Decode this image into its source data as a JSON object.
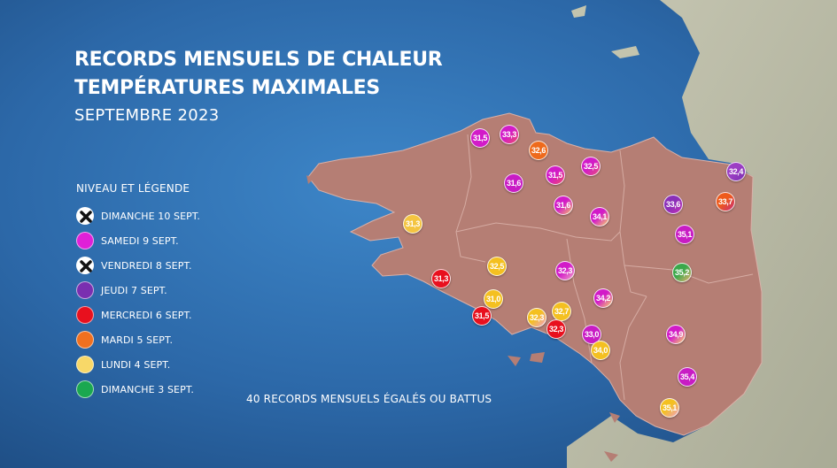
{
  "title": {
    "line1": "RECORDS MENSUELS DE CHALEUR",
    "line2": "TEMPÉRATURES MAXIMALES",
    "line3": "SEPTEMBRE 2023"
  },
  "legend": {
    "title": "NIVEAU ET LÉGENDE",
    "items": [
      {
        "label": "DIMANCHE 10 SEPT.",
        "color": "#ffffff",
        "icon": "cross-icon"
      },
      {
        "label": "SAMEDI 9 SEPT.",
        "color": "#e020d8",
        "icon": "dot-icon"
      },
      {
        "label": "VENDREDI 8 SEPT.",
        "color": "#ffffff",
        "icon": "cross-icon"
      },
      {
        "label": "JEUDI 7 SEPT.",
        "color": "#7a2fb0",
        "icon": "dot-icon"
      },
      {
        "label": "MERCREDI  6 SEPT.",
        "color": "#e8101e",
        "icon": "dot-icon"
      },
      {
        "label": "MARDI 5 SEPT.",
        "color": "#f07020",
        "icon": "dot-icon"
      },
      {
        "label": "LUNDI 4 SEPT.",
        "color": "#f8d868",
        "icon": "dot-icon"
      },
      {
        "label": "DIMANCHE 3 SEPT.",
        "color": "#1aa850",
        "icon": "dot-icon"
      }
    ]
  },
  "footnote": "40 RECORDS MENSUELS ÉGALÉS OU BATTUS",
  "stations": [
    {
      "value": "31,5",
      "colors": [
        "#d21bc8"
      ]
    },
    {
      "value": "33,3",
      "colors": [
        "#d21bc8",
        "#ee4a6a"
      ]
    },
    {
      "value": "32,6",
      "colors": [
        "#ee6a1c"
      ]
    },
    {
      "value": "31,5",
      "colors": [
        "#d21bc8",
        "#ee4a6a"
      ]
    },
    {
      "value": "32,5",
      "colors": [
        "#d21bc8",
        "#e6507a"
      ]
    },
    {
      "value": "31,6",
      "colors": [
        "#c81cc4"
      ]
    },
    {
      "value": "32,4",
      "colors": [
        "#9c3fc4",
        "#7a2fb0"
      ]
    },
    {
      "value": "33,6",
      "colors": [
        "#8a2fb8",
        "#c030b8"
      ]
    },
    {
      "value": "33,7",
      "colors": [
        "#ee5a1c",
        "#c82a78"
      ]
    },
    {
      "value": "31,6",
      "colors": [
        "#d21bc8",
        "#f4c06a"
      ]
    },
    {
      "value": "34,1",
      "colors": [
        "#d21bc8",
        "#f8d868"
      ]
    },
    {
      "value": "31,3",
      "colors": [
        "#f4c440"
      ]
    },
    {
      "value": "35,1",
      "colors": [
        "#c81cc4"
      ]
    },
    {
      "value": "32,5",
      "colors": [
        "#f4c020"
      ]
    },
    {
      "value": "32,3",
      "colors": [
        "#d21bc8",
        "#f0a0c8"
      ]
    },
    {
      "value": "35,2",
      "colors": [
        "#3aa84a",
        "#e8b070"
      ]
    },
    {
      "value": "31,3",
      "colors": [
        "#e8101e"
      ]
    },
    {
      "value": "31,0",
      "colors": [
        "#f4c020"
      ]
    },
    {
      "value": "34,2",
      "colors": [
        "#d21bc8",
        "#f8d868"
      ]
    },
    {
      "value": "32,7",
      "colors": [
        "#f4c020"
      ]
    },
    {
      "value": "31,5",
      "colors": [
        "#e8101e"
      ]
    },
    {
      "value": "32,3",
      "colors": [
        "#f4c020",
        "#f0a0c8"
      ]
    },
    {
      "value": "32,3",
      "colors": [
        "#e8101e"
      ]
    },
    {
      "value": "33,0",
      "colors": [
        "#c81cc4"
      ]
    },
    {
      "value": "34,9",
      "colors": [
        "#d21bc8",
        "#f8d868"
      ]
    },
    {
      "value": "34,0",
      "colors": [
        "#f4c020"
      ]
    },
    {
      "value": "35,4",
      "colors": [
        "#c81cc4"
      ]
    },
    {
      "value": "35,1",
      "colors": [
        "#f4c020",
        "#f0a0c8"
      ]
    }
  ]
}
